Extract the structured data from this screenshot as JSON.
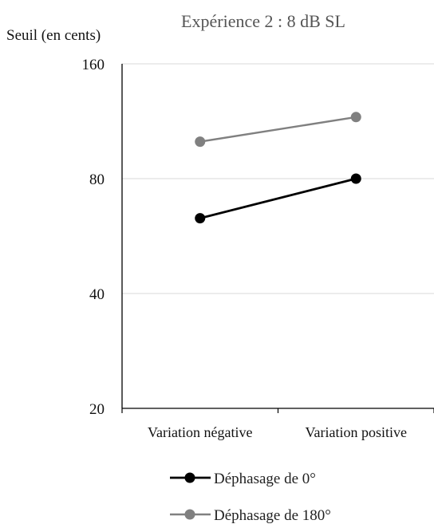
{
  "chart_data": {
    "type": "line",
    "title": "Expérience 2 : 8 dB SL",
    "ylabel": "Seuil (en cents)",
    "xlabel": "",
    "y_scale": "log",
    "ylim": [
      20,
      160
    ],
    "yticks": [
      20,
      40,
      80,
      160
    ],
    "ytick_labels": [
      "20",
      "40",
      "80",
      "160"
    ],
    "grid": true,
    "legend_position": "bottom",
    "categories": [
      "Variation négative",
      "Variation positive"
    ],
    "series": [
      {
        "name": "Déphasage de 0°",
        "color": "#000000",
        "values": [
          63,
          80
        ]
      },
      {
        "name": "Déphasage de 180°",
        "color": "#808080",
        "values": [
          100,
          116
        ]
      }
    ]
  }
}
